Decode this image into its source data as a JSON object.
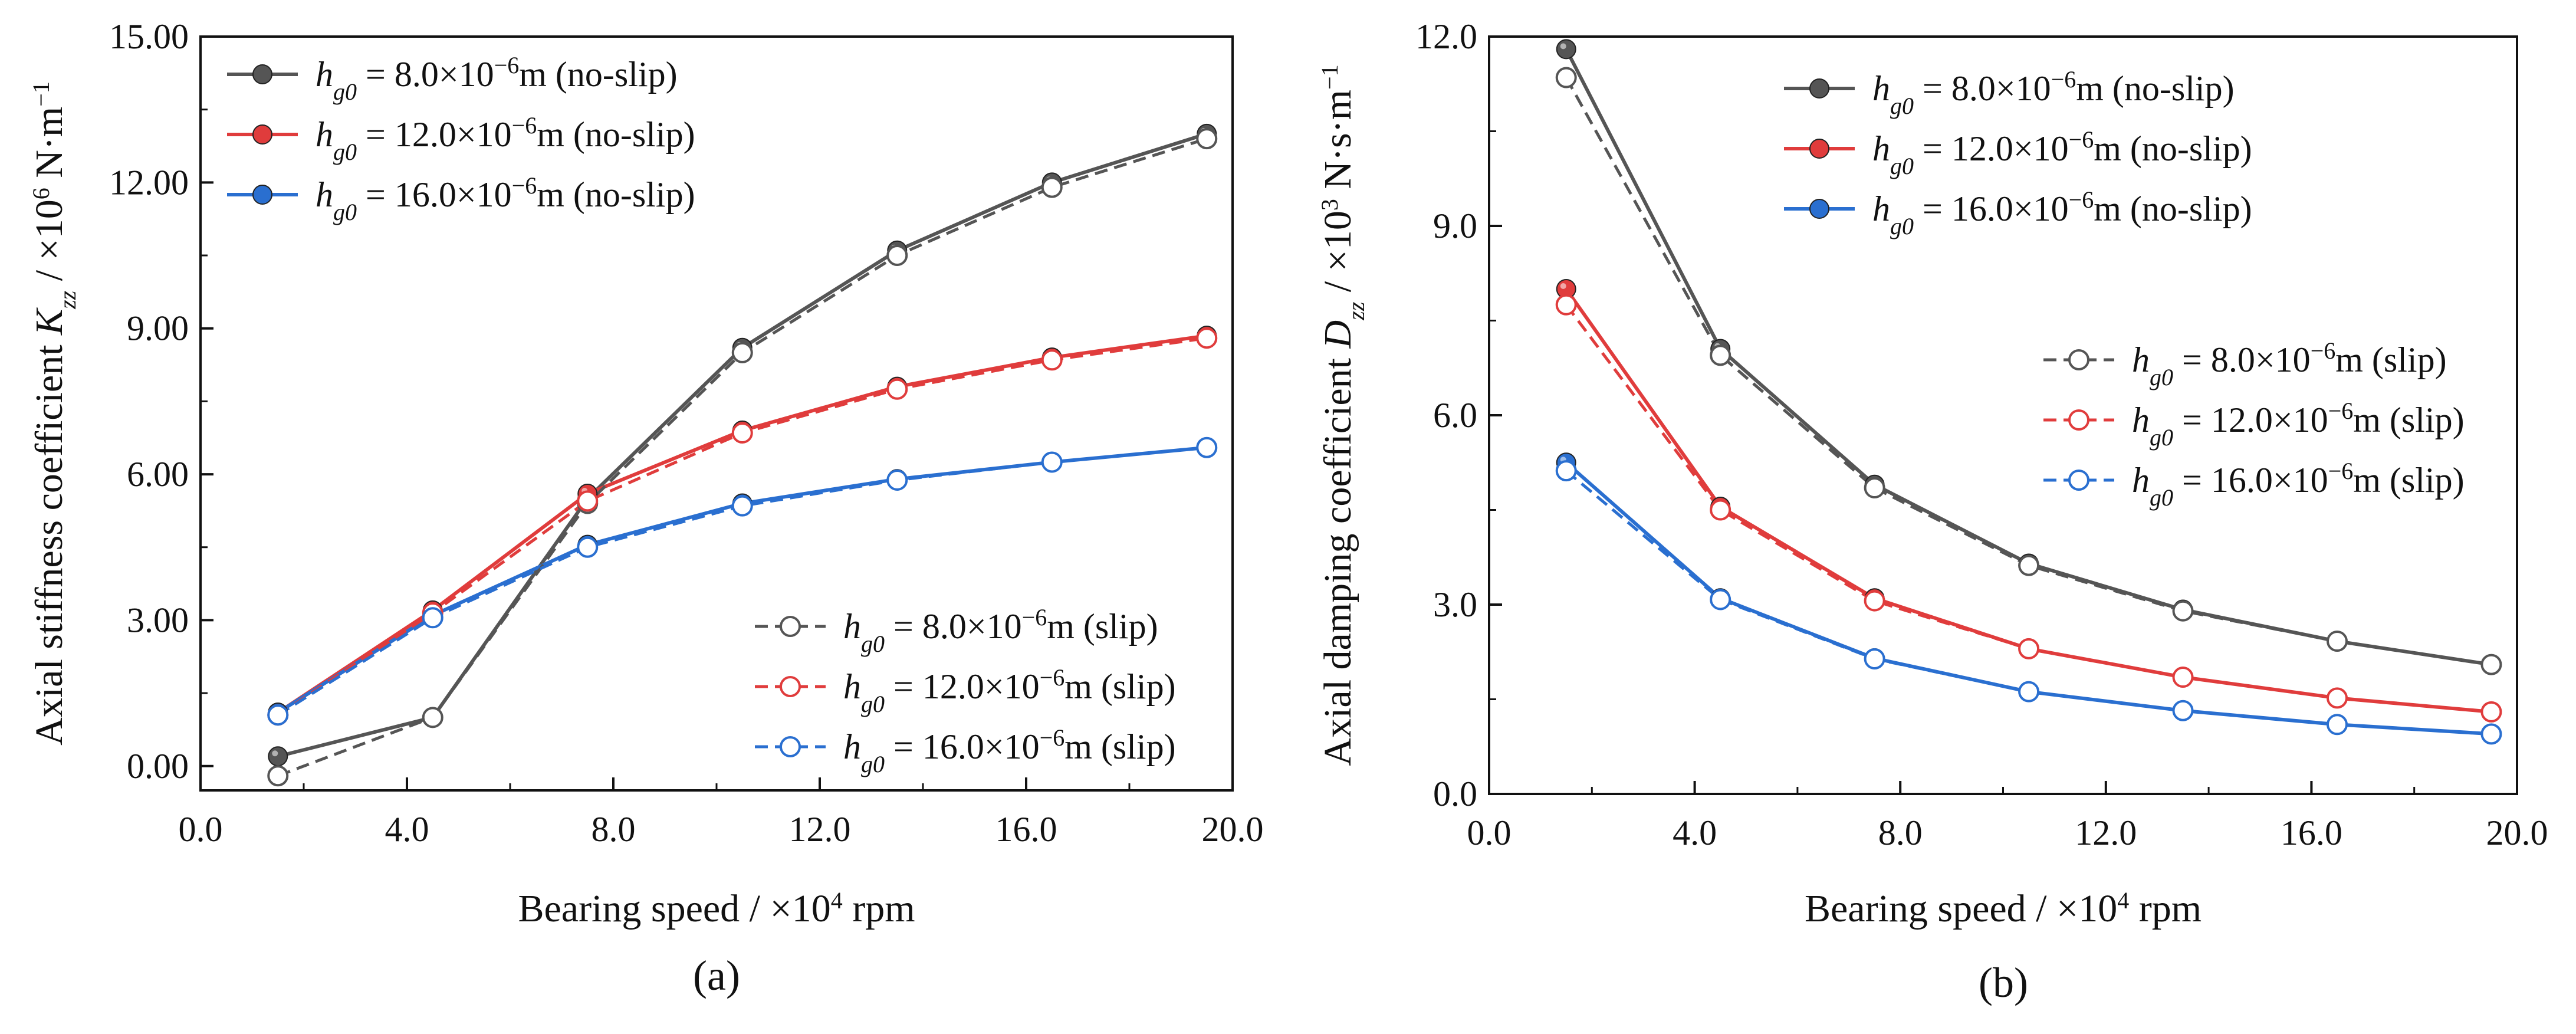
{
  "chart_data": [
    {
      "type": "line",
      "panel_label": "(a)",
      "xlabel_main": "Bearing speed / ×10",
      "xlabel_exp": "4",
      "xlabel_unit": " rpm",
      "ylabel_main": "Axial stiffness coefficient ",
      "ylabel_sym": "K",
      "ylabel_sub": "zz",
      "ylabel_unit": " / ×10",
      "ylabel_exp": "6",
      "ylabel_unit2": " N·m",
      "ylabel_exp2": "−1",
      "xlim": [
        0,
        20
      ],
      "ylim": [
        -0.5,
        15
      ],
      "xticks": [
        0,
        4,
        8,
        12,
        16,
        20
      ],
      "xtick_labels": [
        "0.0",
        "4.0",
        "8.0",
        "12.0",
        "16.0",
        "20.0"
      ],
      "yticks": [
        0,
        3,
        6,
        9,
        12,
        15
      ],
      "ytick_labels": [
        "0.00",
        "3.00",
        "6.00",
        "9.00",
        "12.00",
        "15.00"
      ],
      "x": [
        1.5,
        4.5,
        7.5,
        10.5,
        13.5,
        16.5,
        19.5
      ],
      "series": [
        {
          "name": "8.0 no-slip",
          "hv": "8.0",
          "mode": "no-slip",
          "color": "#555555",
          "dashed": false,
          "filled": true,
          "values": [
            0.2,
            1.0,
            5.5,
            8.6,
            10.6,
            12.0,
            13.0
          ]
        },
        {
          "name": "12.0 no-slip",
          "hv": "12.0",
          "mode": "no-slip",
          "color": "#e03c3c",
          "dashed": false,
          "filled": true,
          "values": [
            1.1,
            3.2,
            5.6,
            6.9,
            7.8,
            8.4,
            8.85
          ]
        },
        {
          "name": "16.0 no-slip",
          "hv": "16.0",
          "mode": "no-slip",
          "color": "#2a6fd0",
          "dashed": false,
          "filled": true,
          "values": [
            1.1,
            3.1,
            4.55,
            5.4,
            5.9,
            6.25,
            6.55
          ]
        },
        {
          "name": "8.0 slip",
          "hv": "8.0",
          "mode": "slip",
          "color": "#555555",
          "dashed": true,
          "filled": false,
          "values": [
            -0.2,
            1.0,
            5.4,
            8.5,
            10.5,
            11.9,
            12.9
          ]
        },
        {
          "name": "12.0 slip",
          "hv": "12.0",
          "mode": "slip",
          "color": "#e03c3c",
          "dashed": true,
          "filled": false,
          "values": [
            1.05,
            3.15,
            5.45,
            6.85,
            7.75,
            8.35,
            8.8
          ]
        },
        {
          "name": "16.0 slip",
          "hv": "16.0",
          "mode": "slip",
          "color": "#2a6fd0",
          "dashed": true,
          "filled": false,
          "values": [
            1.05,
            3.05,
            4.5,
            5.35,
            5.88,
            6.25,
            6.55
          ]
        }
      ],
      "legends": [
        {
          "position": "top-left",
          "series": [
            0,
            1,
            2
          ]
        },
        {
          "position": "bottom-right",
          "series": [
            3,
            4,
            5
          ]
        }
      ]
    },
    {
      "type": "line",
      "panel_label": "(b)",
      "xlabel_main": "Bearing speed / ×10",
      "xlabel_exp": "4",
      "xlabel_unit": " rpm",
      "ylabel_main": "Axial damping coefficient ",
      "ylabel_sym": "D",
      "ylabel_sub": "zz",
      "ylabel_unit": " / ×10",
      "ylabel_exp": "3",
      "ylabel_unit2": " N·s·m",
      "ylabel_exp2": "−1",
      "xlim": [
        0,
        20
      ],
      "ylim": [
        0,
        12
      ],
      "xticks": [
        0,
        4,
        8,
        12,
        16,
        20
      ],
      "xtick_labels": [
        "0.0",
        "4.0",
        "8.0",
        "12.0",
        "16.0",
        "20.0"
      ],
      "yticks": [
        0,
        3,
        6,
        9,
        12
      ],
      "ytick_labels": [
        "0.0",
        "3.0",
        "6.0",
        "9.0",
        "12.0"
      ],
      "x": [
        1.5,
        4.5,
        7.5,
        10.5,
        13.5,
        16.5,
        19.5
      ],
      "series": [
        {
          "name": "8.0 no-slip",
          "hv": "8.0",
          "mode": "no-slip",
          "color": "#555555",
          "dashed": false,
          "filled": true,
          "values": [
            11.8,
            7.05,
            4.9,
            3.65,
            2.92,
            2.42,
            2.05
          ]
        },
        {
          "name": "12.0 no-slip",
          "hv": "12.0",
          "mode": "no-slip",
          "color": "#e03c3c",
          "dashed": false,
          "filled": true,
          "values": [
            8.0,
            4.55,
            3.1,
            2.3,
            1.85,
            1.52,
            1.3
          ]
        },
        {
          "name": "16.0 no-slip",
          "hv": "16.0",
          "mode": "no-slip",
          "color": "#2a6fd0",
          "dashed": false,
          "filled": true,
          "values": [
            5.25,
            3.1,
            2.15,
            1.62,
            1.32,
            1.1,
            0.95
          ]
        },
        {
          "name": "8.0 slip",
          "hv": "8.0",
          "mode": "slip",
          "color": "#555555",
          "dashed": true,
          "filled": false,
          "values": [
            11.35,
            6.95,
            4.85,
            3.62,
            2.9,
            2.42,
            2.05
          ]
        },
        {
          "name": "12.0 slip",
          "hv": "12.0",
          "mode": "slip",
          "color": "#e03c3c",
          "dashed": true,
          "filled": false,
          "values": [
            7.75,
            4.5,
            3.06,
            2.3,
            1.85,
            1.52,
            1.3
          ]
        },
        {
          "name": "16.0 slip",
          "hv": "16.0",
          "mode": "slip",
          "color": "#2a6fd0",
          "dashed": true,
          "filled": false,
          "values": [
            5.12,
            3.08,
            2.14,
            1.62,
            1.32,
            1.1,
            0.95
          ]
        }
      ],
      "legends": [
        {
          "position": "top-right",
          "series": [
            0,
            1,
            2
          ]
        },
        {
          "position": "middle-right",
          "series": [
            3,
            4,
            5
          ]
        }
      ]
    }
  ],
  "legend_text": {
    "h": "h",
    "sub": "g0",
    "eq": " = ",
    "times": "×10",
    "exp": "−6",
    "unit": "m"
  }
}
